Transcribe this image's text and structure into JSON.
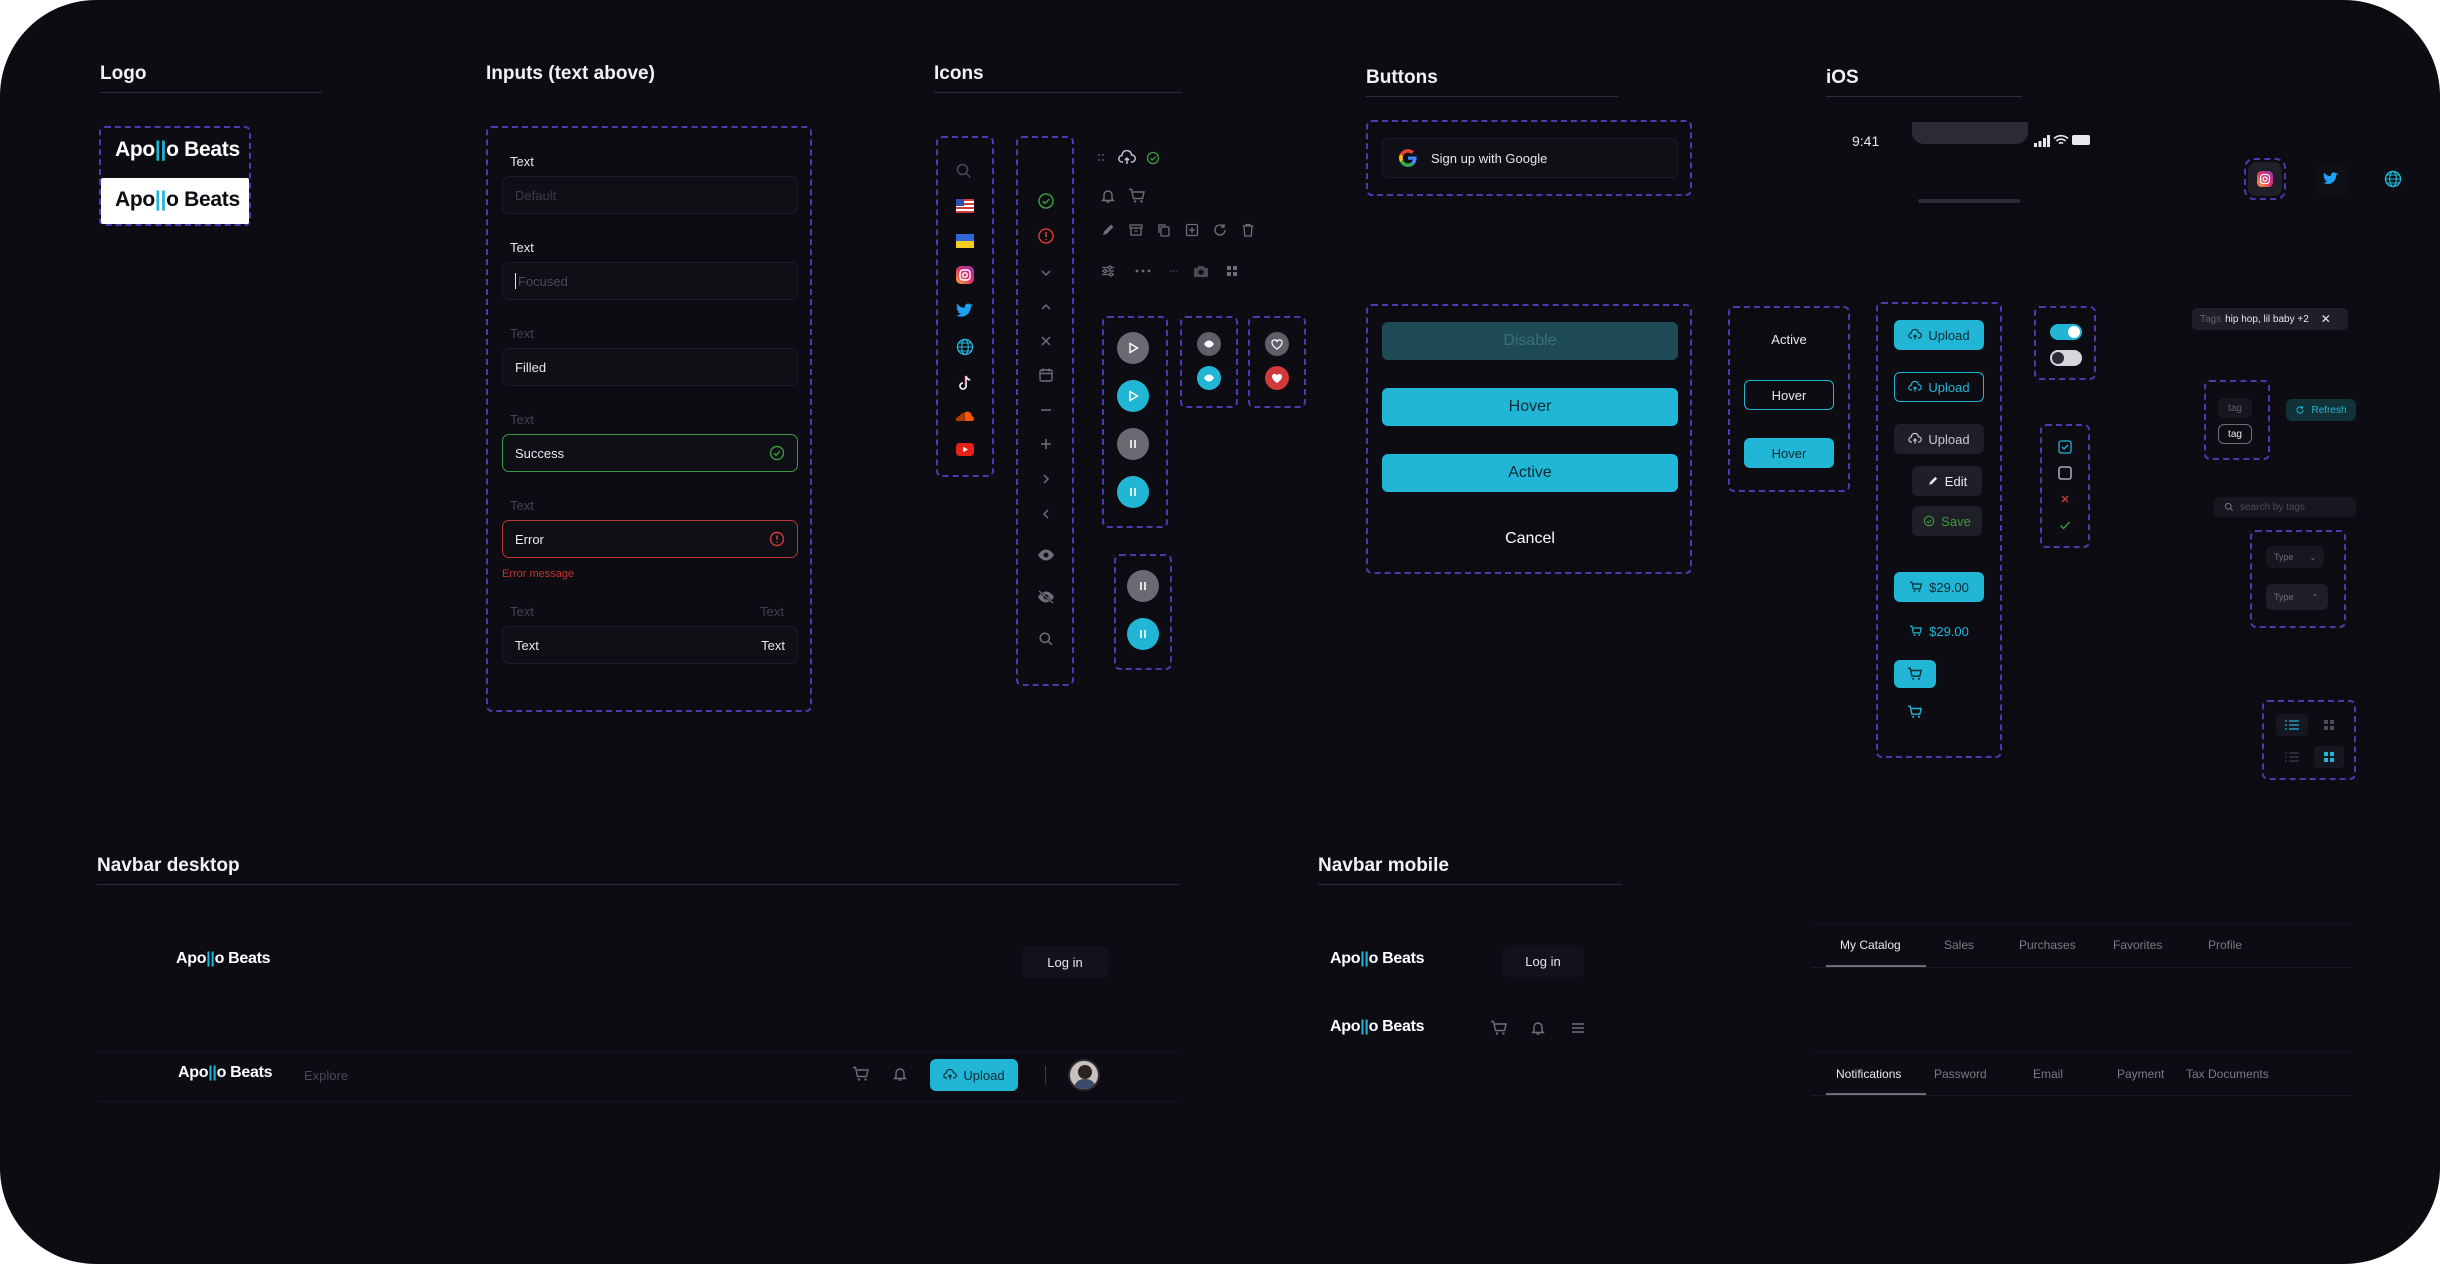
{
  "sections": {
    "logo": "Logo",
    "inputs": "Inputs (text above)",
    "icons": "Icons",
    "buttons": "Buttons",
    "ios": "iOS",
    "navbar_desktop": "Navbar desktop",
    "navbar_mobile": "Navbar mobile"
  },
  "brand": {
    "prefix": "Apo",
    "bar": "||",
    "suffix": "o Beats"
  },
  "inputs": {
    "label": "Text",
    "default_placeholder": "Default",
    "focused_placeholder": "Focused",
    "filled_value": "Filled",
    "success_value": "Success",
    "error_value": "Error",
    "error_message": "Error message",
    "right_label": "Text",
    "right_value": "Text",
    "left_value": "Text"
  },
  "buttons": {
    "google": "Sign up with Google",
    "disable": "Disable",
    "hover": "Hover",
    "active": "Active",
    "cancel": "Cancel",
    "upload": "Upload",
    "edit": "Edit",
    "save": "Save",
    "price": "$29.00"
  },
  "ios": {
    "time": "9:41",
    "tags_label": "Tags",
    "tags_value": "hip hop, lil baby +2",
    "refresh": "Refresh",
    "tag": "tag",
    "search_placeholder": "search by tags",
    "type": "Type"
  },
  "navbar": {
    "login": "Log in",
    "explore": "Explore",
    "upload": "Upload"
  },
  "tabs_profile": [
    "My Catalog",
    "Sales",
    "Purchases",
    "Favorites",
    "Profile"
  ],
  "tabs_settings": [
    "Notifications",
    "Password",
    "Email",
    "Payment",
    "Tax Documents"
  ],
  "colors": {
    "accent": "#22b6d6",
    "background": "#0c0c12",
    "dashed_frame": "#4b3bb0",
    "success": "#3d9a40",
    "error": "#d03a3a"
  }
}
